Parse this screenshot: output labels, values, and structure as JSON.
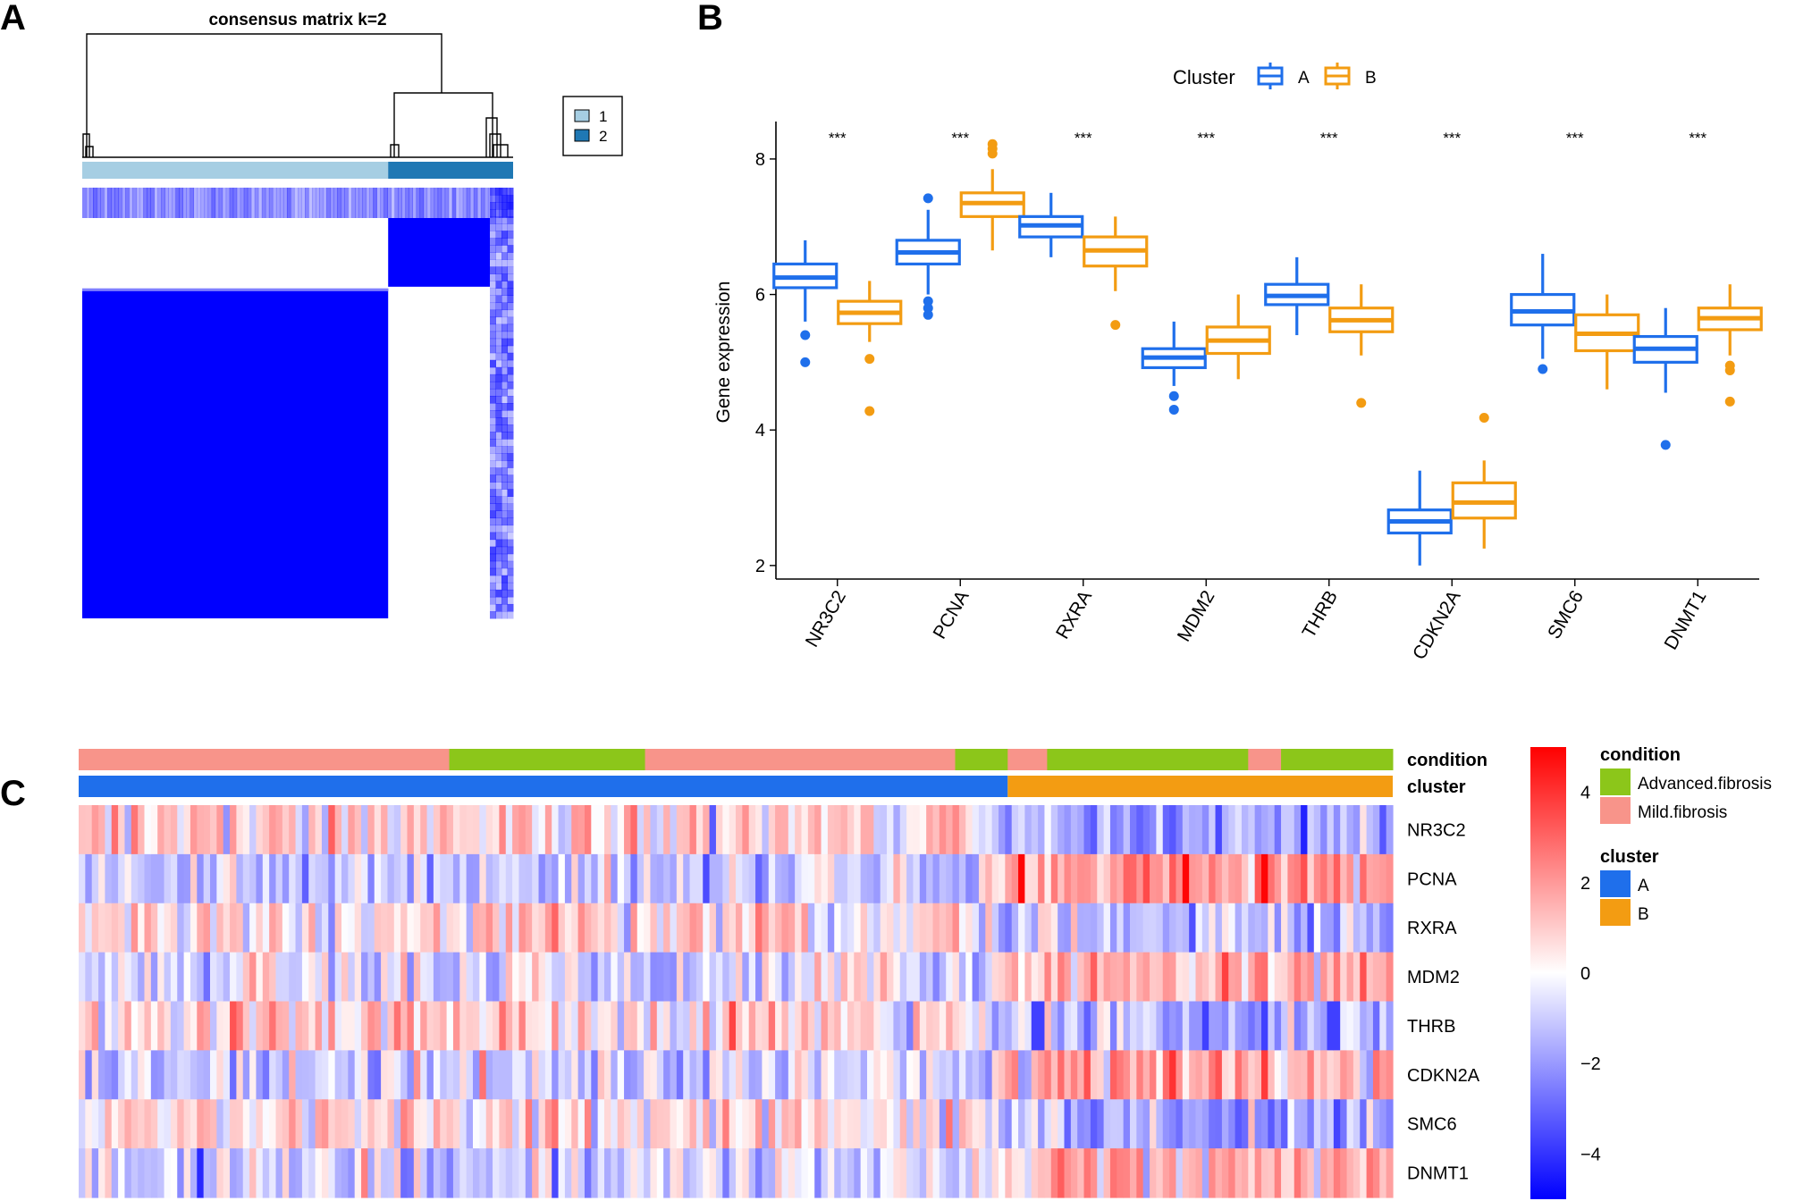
{
  "panels": {
    "a": "A",
    "b": "B",
    "c": "C"
  },
  "colors": {
    "cluster1": "#A6CEE3",
    "cluster2": "#1F78B4",
    "consensus": "#0000FF",
    "clusterA": "#1F6FEB",
    "clusterB": "#F39C12",
    "advanced": "#8CC61A",
    "mild": "#F8948A",
    "heat_low": "#0000FF",
    "heat_mid": "#FFFFFF",
    "heat_high": "#FF0000"
  },
  "chart_data": [
    {
      "id": "consensus",
      "type": "heatmap",
      "title": "consensus matrix k=2",
      "legend": {
        "items": [
          {
            "label": "1"
          },
          {
            "label": "2"
          }
        ]
      },
      "clusters": [
        {
          "label": "1",
          "fraction": 0.71
        },
        {
          "label": "2",
          "fraction": 0.29
        }
      ]
    },
    {
      "id": "boxplot",
      "type": "box",
      "ylabel": "Gene expression",
      "ylim": [
        1.8,
        8.5
      ],
      "yticks": [
        2,
        4,
        6,
        8
      ],
      "legend_title": "Cluster",
      "series_names": [
        "A",
        "B"
      ],
      "categories": [
        "NR3C2",
        "PCNA",
        "RXRA",
        "MDM2",
        "THRB",
        "CDKN2A",
        "SMC6",
        "DNMT1"
      ],
      "significance": [
        "***",
        "***",
        "***",
        "***",
        "***",
        "***",
        "***",
        "***"
      ],
      "boxes": {
        "A": [
          {
            "min": 5.6,
            "q1": 6.1,
            "median": 6.25,
            "q3": 6.45,
            "max": 6.8,
            "outliers": [
              5.4,
              5.0
            ]
          },
          {
            "min": 6.0,
            "q1": 6.45,
            "median": 6.62,
            "q3": 6.8,
            "max": 7.25,
            "outliers": [
              7.42,
              5.9,
              5.8,
              5.7
            ]
          },
          {
            "min": 6.55,
            "q1": 6.85,
            "median": 7.02,
            "q3": 7.15,
            "max": 7.5,
            "outliers": []
          },
          {
            "min": 4.65,
            "q1": 4.92,
            "median": 5.07,
            "q3": 5.2,
            "max": 5.6,
            "outliers": [
              4.5,
              4.3
            ]
          },
          {
            "min": 5.4,
            "q1": 5.85,
            "median": 5.98,
            "q3": 6.15,
            "max": 6.55,
            "outliers": []
          },
          {
            "min": 2.0,
            "q1": 2.48,
            "median": 2.65,
            "q3": 2.82,
            "max": 3.4,
            "outliers": []
          },
          {
            "min": 5.05,
            "q1": 5.55,
            "median": 5.75,
            "q3": 6.0,
            "max": 6.6,
            "outliers": [
              4.9
            ]
          },
          {
            "min": 4.55,
            "q1": 5.0,
            "median": 5.2,
            "q3": 5.38,
            "max": 5.8,
            "outliers": [
              3.78
            ]
          }
        ],
        "B": [
          {
            "min": 5.3,
            "q1": 5.57,
            "median": 5.73,
            "q3": 5.9,
            "max": 6.2,
            "outliers": [
              5.05,
              4.28
            ]
          },
          {
            "min": 6.65,
            "q1": 7.15,
            "median": 7.35,
            "q3": 7.5,
            "max": 7.85,
            "outliers": [
              8.22,
              8.15,
              8.08
            ]
          },
          {
            "min": 6.05,
            "q1": 6.42,
            "median": 6.65,
            "q3": 6.85,
            "max": 7.15,
            "outliers": [
              5.55
            ]
          },
          {
            "min": 4.75,
            "q1": 5.13,
            "median": 5.32,
            "q3": 5.52,
            "max": 6.0,
            "outliers": []
          },
          {
            "min": 5.1,
            "q1": 5.45,
            "median": 5.62,
            "q3": 5.8,
            "max": 6.15,
            "outliers": [
              4.4
            ]
          },
          {
            "min": 2.25,
            "q1": 2.7,
            "median": 2.93,
            "q3": 3.22,
            "max": 3.55,
            "outliers": [
              4.18
            ]
          },
          {
            "min": 4.6,
            "q1": 5.17,
            "median": 5.42,
            "q3": 5.7,
            "max": 6.0,
            "outliers": []
          },
          {
            "min": 5.1,
            "q1": 5.48,
            "median": 5.65,
            "q3": 5.8,
            "max": 6.15,
            "outliers": [
              4.95,
              4.88,
              4.42
            ]
          }
        ]
      }
    },
    {
      "id": "expression_heatmap",
      "type": "heatmap",
      "annotation_rows": [
        "condition",
        "cluster"
      ],
      "genes": [
        "NR3C2",
        "PCNA",
        "RXRA",
        "MDM2",
        "THRB",
        "CDKN2A",
        "SMC6",
        "DNMT1"
      ],
      "n_samples": 200,
      "condition_segments": [
        {
          "label": "Mild.fibrosis",
          "fraction": 0.282
        },
        {
          "label": "Advanced.fibrosis",
          "fraction": 0.149
        },
        {
          "label": "Mild.fibrosis",
          "fraction": 0.236
        },
        {
          "label": "Advanced.fibrosis",
          "fraction": 0.04
        },
        {
          "label": "Mild.fibrosis",
          "fraction": 0.03
        },
        {
          "label": "Advanced.fibrosis",
          "fraction": 0.153
        },
        {
          "label": "Mild.fibrosis",
          "fraction": 0.025
        },
        {
          "label": "Advanced.fibrosis",
          "fraction": 0.085
        }
      ],
      "cluster_segments": [
        {
          "label": "A",
          "fraction": 0.707
        },
        {
          "label": "B",
          "fraction": 0.293
        }
      ],
      "gene_bias_A": [
        0.5,
        -0.6,
        0.35,
        -0.3,
        0.35,
        -0.45,
        0.35,
        -0.5
      ],
      "gene_bias_B": [
        -1.2,
        1.4,
        -0.9,
        0.9,
        -1.0,
        1.0,
        -0.9,
        1.1
      ],
      "colorbar": {
        "ticks": [
          4,
          2,
          0,
          -2,
          -4
        ],
        "range": [
          -5,
          5
        ]
      },
      "legend": {
        "condition_title": "condition",
        "condition_items": [
          "Advanced.fibrosis",
          "Mild.fibrosis"
        ],
        "cluster_title": "cluster",
        "cluster_items": [
          "A",
          "B"
        ]
      }
    }
  ]
}
